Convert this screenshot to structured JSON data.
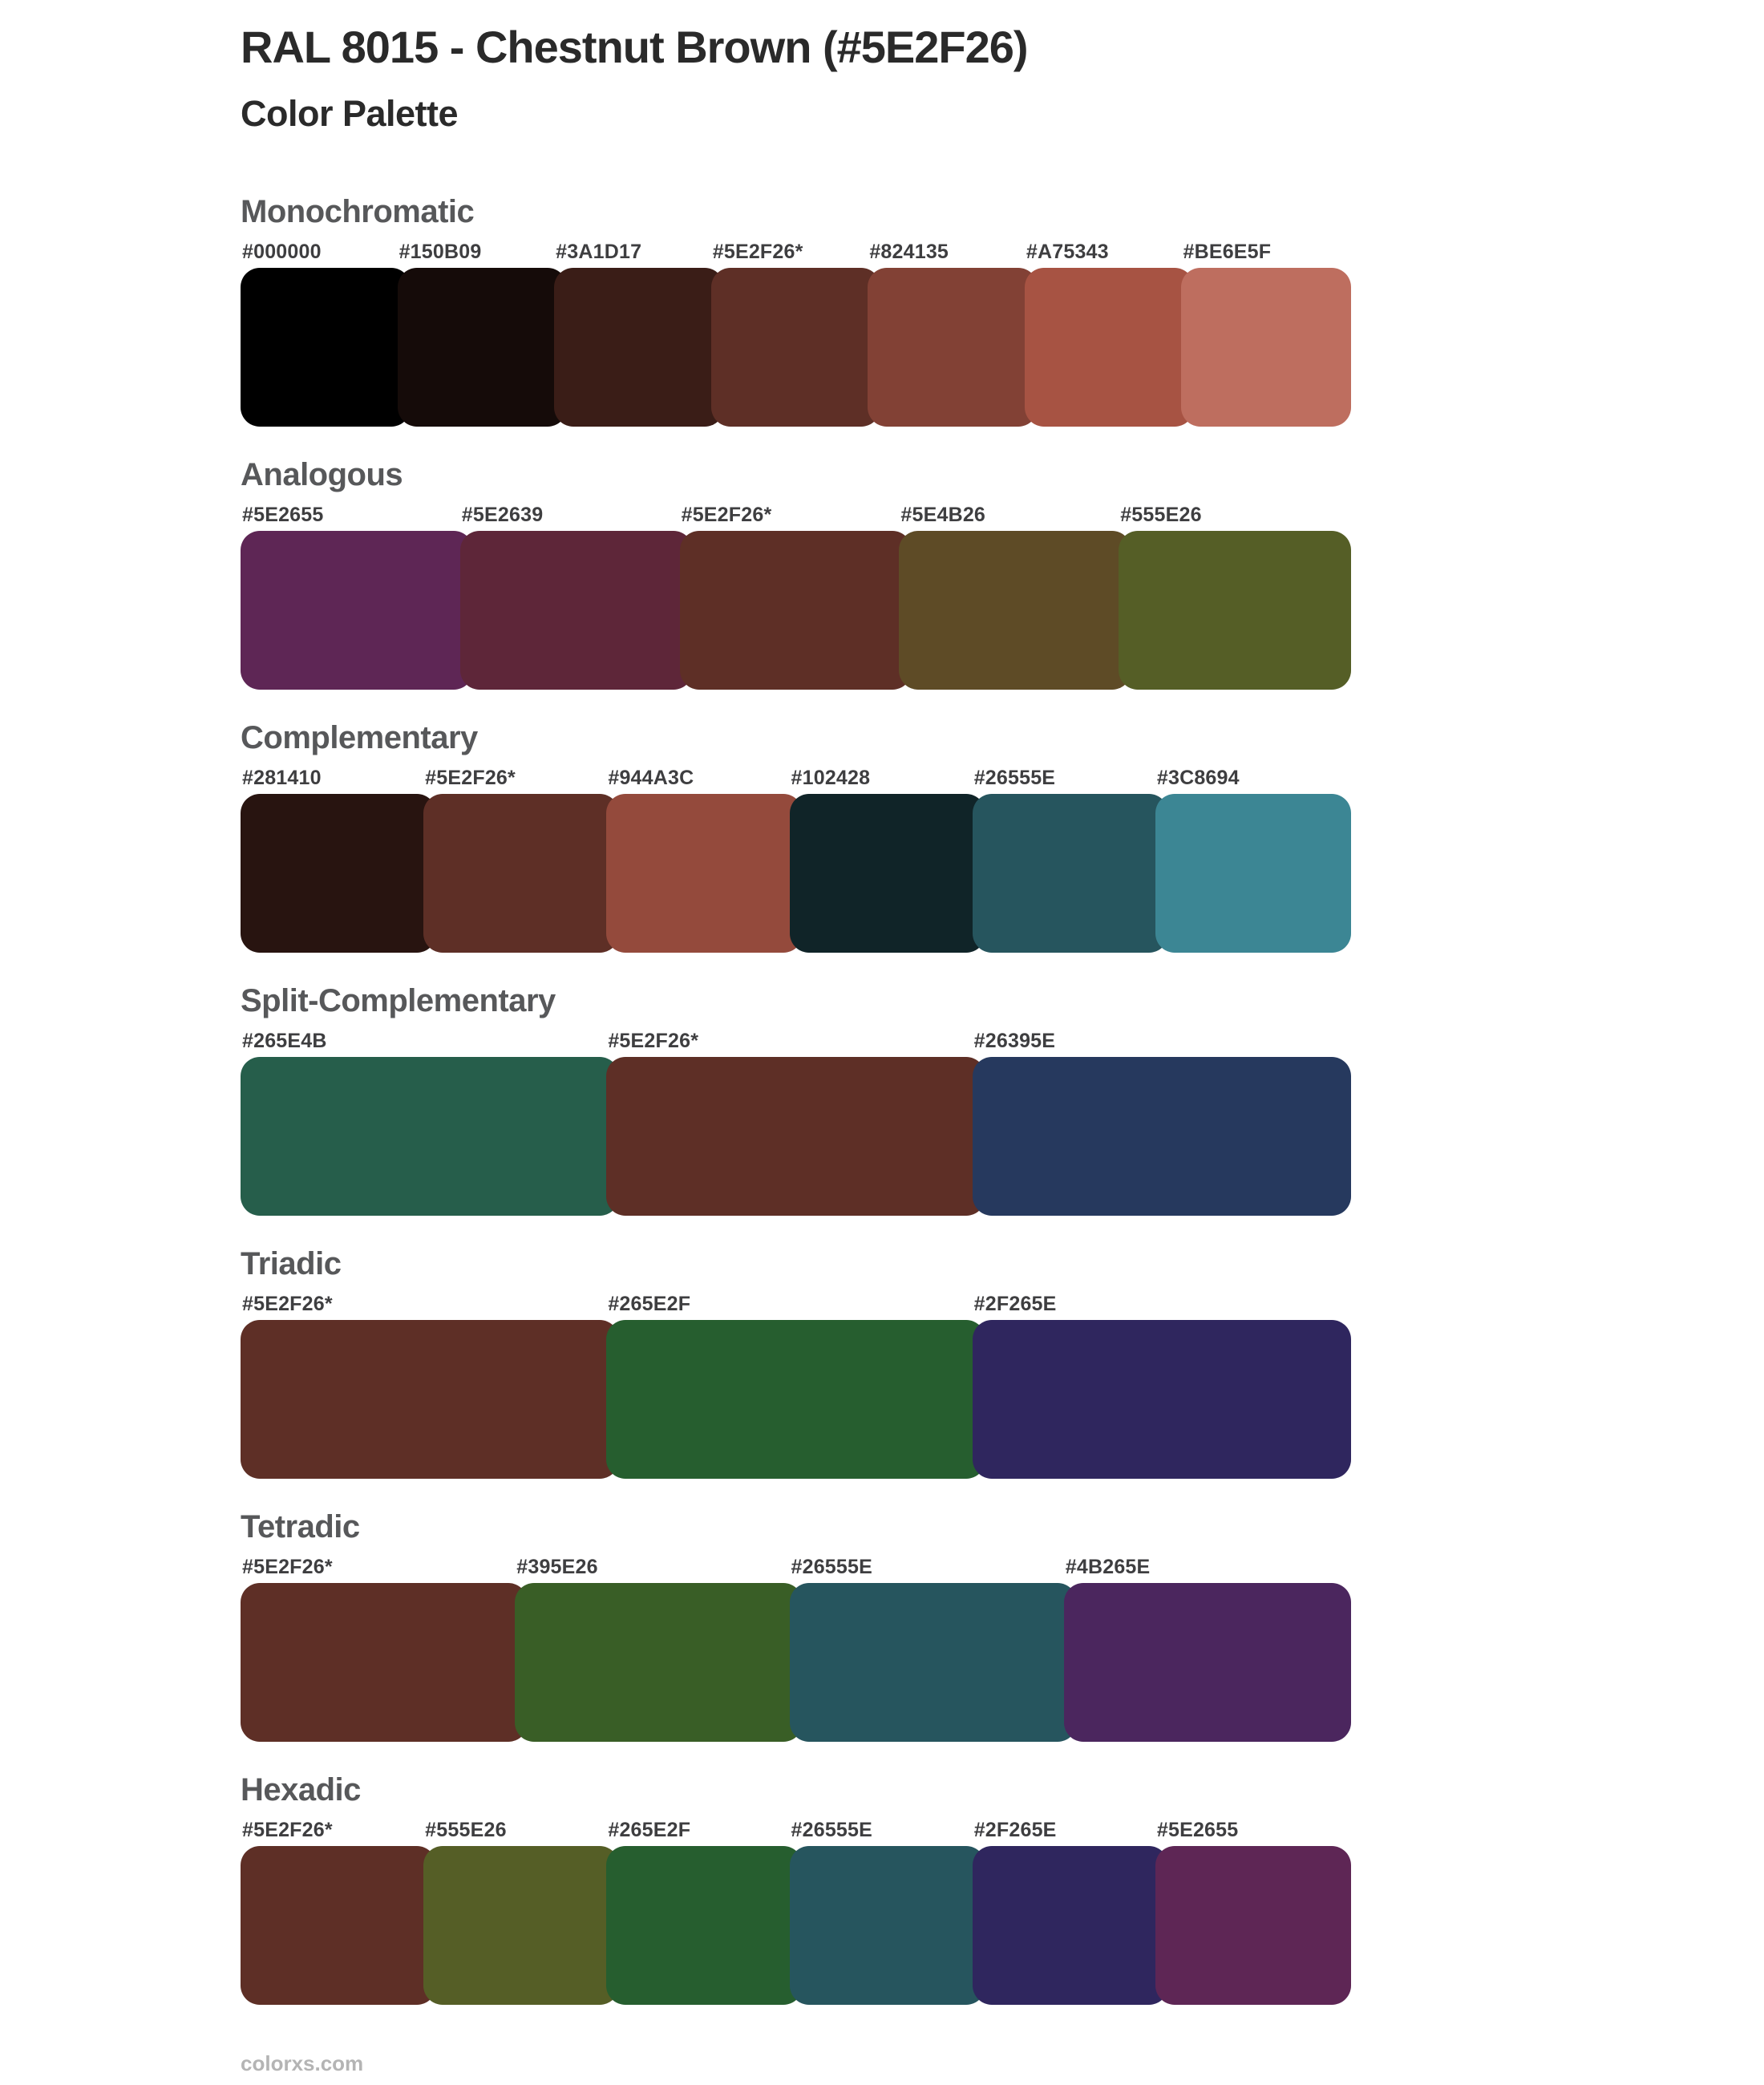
{
  "page": {
    "title": "RAL 8015 - Chestnut Brown (#5E2F26)",
    "subtitle": "Color Palette",
    "footer_link": "colorxs.com",
    "background": "#ffffff",
    "base_color": "#5E2F26",
    "title_color": "#2a2a2a",
    "heading_color": "#57585a",
    "hex_label_color": "#3e3e40",
    "footer_color": "#b4b4b4"
  },
  "sections": [
    {
      "title": "Monochromatic",
      "swatches": [
        {
          "label": "#000000",
          "color": "#000000"
        },
        {
          "label": "#150B09",
          "color": "#150B09"
        },
        {
          "label": "#3A1D17",
          "color": "#3A1D17"
        },
        {
          "label": "#5E2F26*",
          "color": "#5E2F26"
        },
        {
          "label": "#824135",
          "color": "#824135"
        },
        {
          "label": "#A75343",
          "color": "#A75343"
        },
        {
          "label": "#BE6E5F",
          "color": "#BE6E5F"
        }
      ]
    },
    {
      "title": "Analogous",
      "swatches": [
        {
          "label": "#5E2655",
          "color": "#5E2655"
        },
        {
          "label": "#5E2639",
          "color": "#5E2639"
        },
        {
          "label": "#5E2F26*",
          "color": "#5E2F26"
        },
        {
          "label": "#5E4B26",
          "color": "#5E4B26"
        },
        {
          "label": "#555E26",
          "color": "#555E26"
        }
      ]
    },
    {
      "title": "Complementary",
      "swatches": [
        {
          "label": "#281410",
          "color": "#281410"
        },
        {
          "label": "#5E2F26*",
          "color": "#5E2F26"
        },
        {
          "label": "#944A3C",
          "color": "#944A3C"
        },
        {
          "label": "#102428",
          "color": "#102428"
        },
        {
          "label": "#26555E",
          "color": "#26555E"
        },
        {
          "label": "#3C8694",
          "color": "#3C8694"
        }
      ]
    },
    {
      "title": "Split-Complementary",
      "swatches": [
        {
          "label": "#265E4B",
          "color": "#265E4B"
        },
        {
          "label": "#5E2F26*",
          "color": "#5E2F26"
        },
        {
          "label": "#26395E",
          "color": "#26395E"
        }
      ]
    },
    {
      "title": "Triadic",
      "swatches": [
        {
          "label": "#5E2F26*",
          "color": "#5E2F26"
        },
        {
          "label": "#265E2F",
          "color": "#265E2F"
        },
        {
          "label": "#2F265E",
          "color": "#2F265E"
        }
      ]
    },
    {
      "title": "Tetradic",
      "swatches": [
        {
          "label": "#5E2F26*",
          "color": "#5E2F26"
        },
        {
          "label": "#395E26",
          "color": "#395E26"
        },
        {
          "label": "#26555E",
          "color": "#26555E"
        },
        {
          "label": "#4B265E",
          "color": "#4B265E"
        }
      ]
    },
    {
      "title": "Hexadic",
      "swatches": [
        {
          "label": "#5E2F26*",
          "color": "#5E2F26"
        },
        {
          "label": "#555E26",
          "color": "#555E26"
        },
        {
          "label": "#265E2F",
          "color": "#265E2F"
        },
        {
          "label": "#26555E",
          "color": "#26555E"
        },
        {
          "label": "#2F265E",
          "color": "#2F265E"
        },
        {
          "label": "#5E2655",
          "color": "#5E2655"
        }
      ]
    }
  ]
}
